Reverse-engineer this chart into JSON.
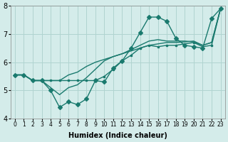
{
  "xlabel": "Humidex (Indice chaleur)",
  "ylabel": "",
  "bg_color": "#d4ecea",
  "grid_color": "#b0d4d0",
  "line_color": "#1a7a6e",
  "xmin": 0,
  "xmax": 23,
  "ymin": 4,
  "ymax": 8,
  "yticks": [
    4,
    5,
    6,
    7,
    8
  ],
  "xtick_labels": [
    "0",
    "1",
    "2",
    "3",
    "4",
    "5",
    "6",
    "7",
    "8",
    "9",
    "10",
    "11",
    "12",
    "13",
    "14",
    "15",
    "16",
    "17",
    "18",
    "19",
    "20",
    "21",
    "22",
    "23"
  ],
  "line1_x": [
    0,
    1,
    2,
    3,
    4,
    5,
    6,
    7,
    8,
    9,
    10,
    11,
    12,
    13,
    14,
    15,
    16,
    17,
    18,
    19,
    20,
    21,
    22,
    23
  ],
  "line1_y": [
    5.55,
    5.55,
    5.35,
    5.35,
    5.35,
    5.35,
    5.35,
    5.35,
    5.35,
    5.35,
    5.5,
    5.75,
    6.05,
    6.25,
    6.5,
    6.6,
    6.55,
    6.6,
    6.6,
    6.65,
    6.7,
    6.55,
    6.6,
    7.9
  ],
  "line2_x": [
    0,
    1,
    2,
    3,
    4,
    5,
    6,
    7,
    8,
    9,
    10,
    11,
    12,
    13,
    14,
    15,
    16,
    17,
    18,
    19,
    20,
    21,
    22,
    23
  ],
  "line2_y": [
    5.55,
    5.55,
    5.35,
    5.35,
    5.0,
    4.4,
    4.6,
    4.5,
    4.7,
    5.35,
    5.3,
    5.8,
    6.05,
    6.5,
    7.05,
    7.6,
    7.6,
    7.45,
    6.85,
    6.6,
    6.55,
    6.5,
    7.55,
    7.9
  ],
  "line3_x": [
    0,
    1,
    2,
    3,
    4,
    5,
    6,
    7,
    8,
    9,
    10,
    11,
    12,
    13,
    14,
    15,
    16,
    17,
    18,
    19,
    20,
    21,
    22,
    23
  ],
  "line3_y": [
    5.55,
    5.55,
    5.35,
    5.35,
    5.35,
    5.35,
    5.55,
    5.65,
    5.85,
    6.0,
    6.1,
    6.2,
    6.3,
    6.4,
    6.5,
    6.6,
    6.65,
    6.7,
    6.7,
    6.72,
    6.75,
    6.6,
    6.7,
    7.9
  ],
  "line4_x": [
    0,
    1,
    2,
    3,
    4,
    5,
    6,
    7,
    8,
    9,
    10,
    11,
    12,
    13,
    14,
    15,
    16,
    17,
    18,
    19,
    20,
    21,
    22,
    23
  ],
  "line4_y": [
    5.55,
    5.55,
    5.35,
    5.35,
    5.1,
    4.85,
    5.1,
    5.2,
    5.45,
    5.75,
    6.05,
    6.2,
    6.3,
    6.45,
    6.6,
    6.75,
    6.8,
    6.75,
    6.75,
    6.75,
    6.72,
    6.6,
    6.7,
    7.9
  ]
}
